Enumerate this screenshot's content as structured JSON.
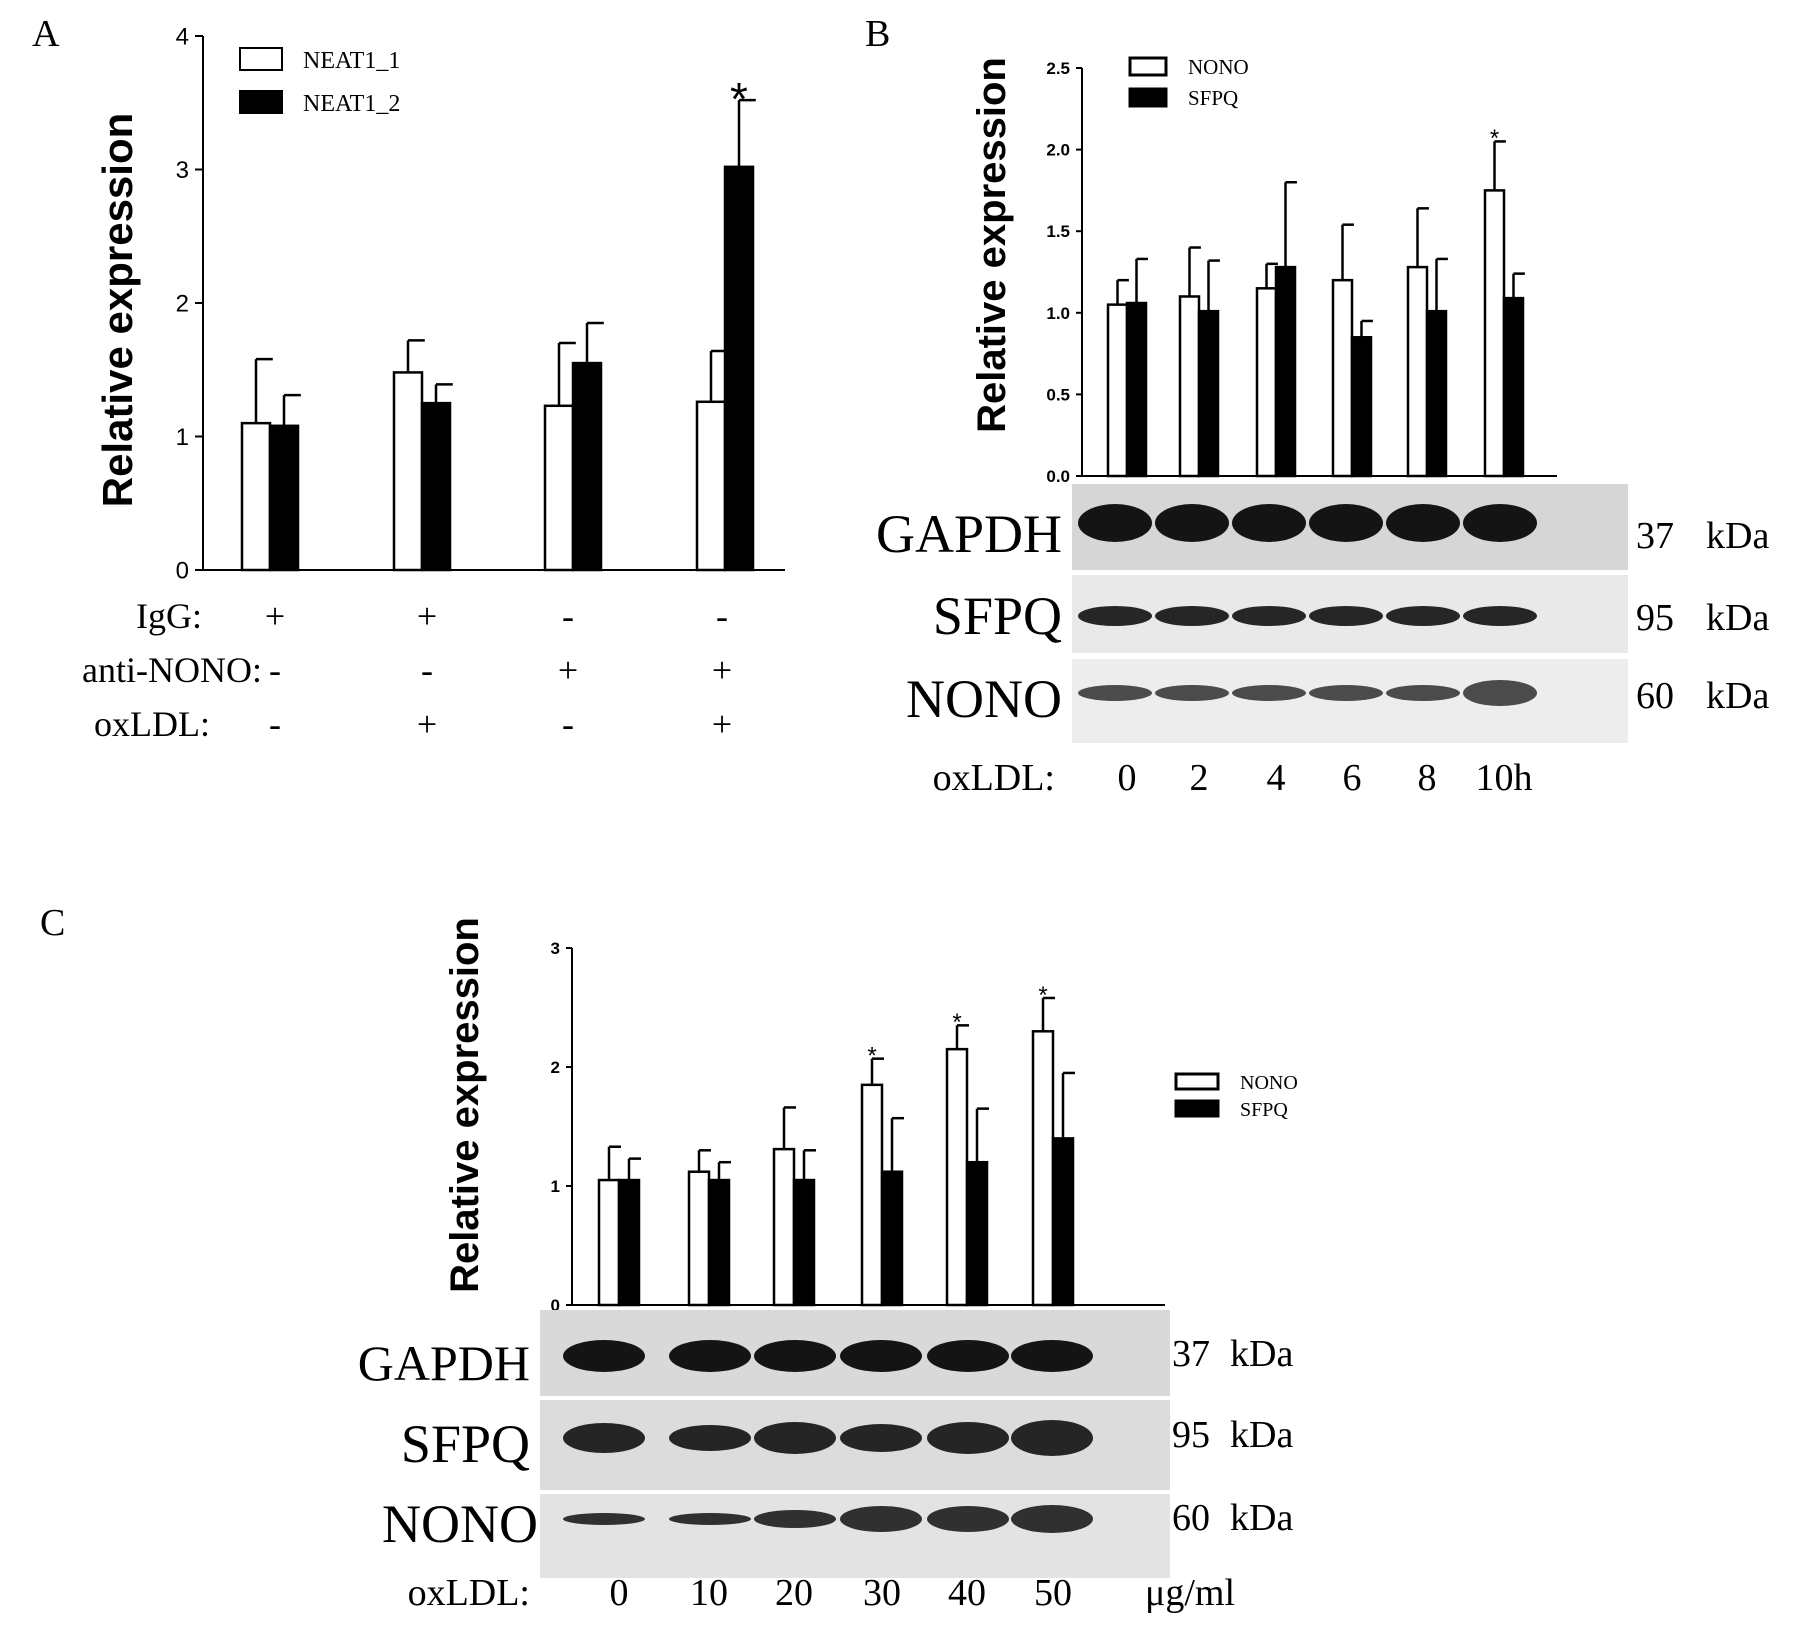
{
  "panel_labels": {
    "a": "A",
    "b": "B",
    "c": "C"
  },
  "units": {
    "kda": "kDa",
    "ug_per_ml": "μg/ml"
  },
  "blot_rows": {
    "gapdh": {
      "label": "GAPDH",
      "size": "37"
    },
    "sfpq": {
      "label": "SFPQ",
      "size": "95"
    },
    "nono": {
      "label": "NONO",
      "size": "60"
    }
  },
  "chart_data": [
    {
      "panel": "A",
      "type": "bar",
      "ylabel": "Relative expression",
      "ylim": [
        0,
        4
      ],
      "yticks": [
        "0",
        "1",
        "2",
        "3",
        "4"
      ],
      "legend_position": "top-left",
      "series": [
        {
          "name": "NEAT1_1",
          "fill": "#ffffff",
          "values": [
            1.1,
            1.48,
            1.23,
            1.26
          ],
          "errors": [
            0.48,
            0.24,
            0.47,
            0.38
          ]
        },
        {
          "name": "NEAT1_2",
          "fill": "#000000",
          "values": [
            1.08,
            1.25,
            1.55,
            3.02
          ],
          "errors": [
            0.23,
            0.14,
            0.3,
            0.5
          ]
        }
      ],
      "significance": [
        {
          "group": 3,
          "series": 1,
          "mark": "*"
        }
      ],
      "condition_table": {
        "rows": [
          {
            "label": "IgG:",
            "values": [
              "+",
              "+",
              "-",
              "-"
            ]
          },
          {
            "label": "anti-NONO:",
            "values": [
              "-",
              "-",
              "+",
              "+"
            ]
          },
          {
            "label": "oxLDL:",
            "values": [
              "-",
              "+",
              "-",
              "+"
            ]
          }
        ]
      }
    },
    {
      "panel": "B",
      "type": "bar",
      "ylabel": "Relative  expression",
      "ylim": [
        0,
        2.5
      ],
      "yticks": [
        "0.0",
        "0.5",
        "1.0",
        "1.5",
        "2.0",
        "2.5"
      ],
      "legend_position": "top-left",
      "categories": [
        "0",
        "2",
        "4",
        "6",
        "8",
        "10h"
      ],
      "xlabel": "oxLDL:",
      "series": [
        {
          "name": "NONO",
          "fill": "#ffffff",
          "values": [
            1.05,
            1.1,
            1.15,
            1.2,
            1.28,
            1.75
          ],
          "errors": [
            0.15,
            0.3,
            0.15,
            0.34,
            0.36,
            0.3
          ]
        },
        {
          "name": "SFPQ",
          "fill": "#000000",
          "values": [
            1.06,
            1.01,
            1.28,
            0.85,
            1.01,
            1.09
          ],
          "errors": [
            0.27,
            0.31,
            0.52,
            0.1,
            0.32,
            0.15
          ]
        }
      ],
      "significance": [
        {
          "group": 5,
          "series": 0,
          "mark": "*"
        }
      ]
    },
    {
      "panel": "C",
      "type": "bar",
      "ylabel": "Relative expression",
      "ylim": [
        0,
        3
      ],
      "yticks": [
        "0",
        "1",
        "2",
        "3"
      ],
      "legend_position": "right",
      "categories": [
        "0",
        "10",
        "20",
        "30",
        "40",
        "50"
      ],
      "xlabel": "oxLDL:",
      "x_unit": "μg/ml",
      "series": [
        {
          "name": "NONO",
          "fill": "#ffffff",
          "values": [
            1.05,
            1.12,
            1.31,
            1.85,
            2.15,
            2.3
          ],
          "errors": [
            0.28,
            0.18,
            0.35,
            0.22,
            0.2,
            0.28
          ]
        },
        {
          "name": "SFPQ",
          "fill": "#000000",
          "values": [
            1.05,
            1.05,
            1.05,
            1.12,
            1.2,
            1.4
          ],
          "errors": [
            0.18,
            0.15,
            0.25,
            0.45,
            0.45,
            0.55
          ]
        }
      ],
      "significance": [
        {
          "group": 3,
          "series": 0,
          "mark": "*"
        },
        {
          "group": 4,
          "series": 0,
          "mark": "*"
        },
        {
          "group": 5,
          "series": 0,
          "mark": "*"
        }
      ]
    }
  ]
}
